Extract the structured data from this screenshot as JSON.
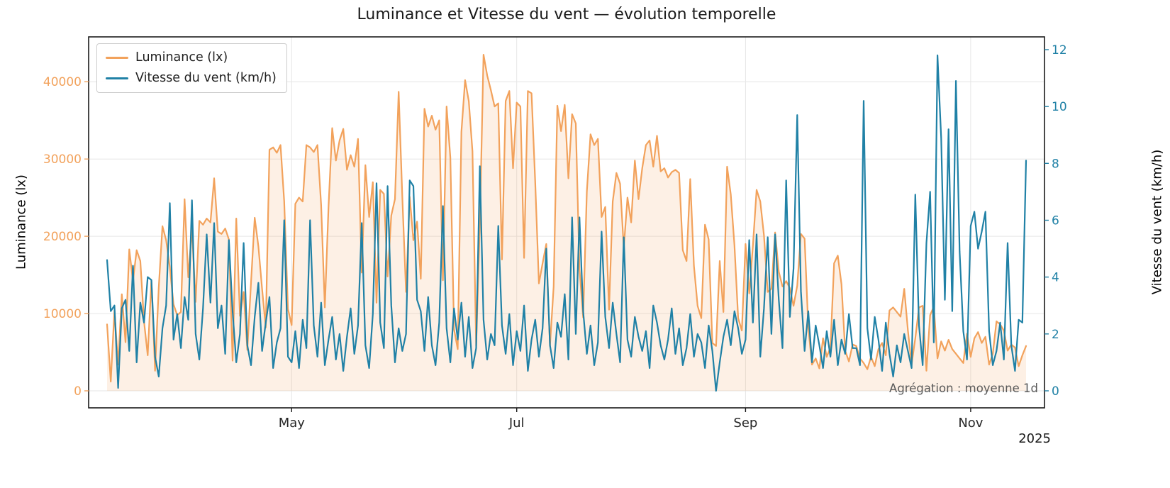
{
  "title": "Luminance et Vitesse du vent — évolution temporelle",
  "annotation": "Agrégation : moyenne 1d",
  "year_label": "2025",
  "axes": {
    "left_label": "Luminance (lx)",
    "right_label": "Vitesse du vent (km/h)",
    "left_color": "#f2a25c",
    "right_color": "#2081a6"
  },
  "legend": {
    "items": [
      {
        "label": "Luminance (lx)",
        "color": "#f2a25c"
      },
      {
        "label": "Vitesse du vent (km/h)",
        "color": "#2081a6"
      }
    ]
  },
  "chart_data": {
    "type": "line",
    "title": "Luminance et Vitesse du vent — évolution temporelle",
    "xlabel": "",
    "ylabel_left": "Luminance (lx)",
    "ylabel_right": "Vitesse du vent (km/h)",
    "aggregation": "moyenne 1d",
    "x_start": "2025-03-12",
    "x_end": "2025-11-16",
    "x_freq": "1d",
    "grid_color": "#e6e6e6",
    "xlim": [
      -5,
      254
    ],
    "x_ticks": [
      {
        "index": 50,
        "label": "May"
      },
      {
        "index": 111,
        "label": "Jul"
      },
      {
        "index": 173,
        "label": "Sep"
      },
      {
        "index": 234,
        "label": "Nov"
      }
    ],
    "x_year": "2025",
    "left_axis": {
      "label": "Luminance (lx)",
      "color": "#f2a25c",
      "ticks": [
        0,
        10000,
        20000,
        30000,
        40000
      ],
      "ylim": [
        -2200,
        45800
      ]
    },
    "right_axis": {
      "label": "Vitesse du vent (km/h)",
      "color": "#2081a6",
      "ticks": [
        0,
        2,
        4,
        6,
        8,
        10,
        12
      ],
      "ylim": [
        -0.6,
        12.45
      ]
    },
    "series": [
      {
        "name": "Luminance (lx)",
        "axis": "left",
        "color": "#f2a25c",
        "fill": true,
        "fill_color": "rgba(242,162,92,0.16)",
        "values": [
          8600,
          1200,
          10400,
          3400,
          12500,
          6300,
          18300,
          14200,
          18200,
          16800,
          9000,
          4600,
          14300,
          2600,
          13400,
          21300,
          19500,
          16000,
          11200,
          9800,
          10200,
          24800,
          14700,
          21000,
          11500,
          22000,
          21500,
          22300,
          21800,
          27500,
          20600,
          20300,
          21000,
          19600,
          3900,
          22300,
          9700,
          12800,
          5300,
          14000,
          22400,
          18700,
          13200,
          8200,
          31200,
          31500,
          30800,
          31800,
          24500,
          10600,
          8500,
          24200,
          25000,
          24500,
          31800,
          31500,
          30900,
          31800,
          24000,
          10800,
          23800,
          34000,
          29800,
          32400,
          33900,
          28600,
          30500,
          29000,
          32600,
          15300,
          29200,
          22500,
          27000,
          11400,
          26000,
          25500,
          14800,
          22700,
          24800,
          38700,
          25000,
          12800,
          25100,
          19500,
          21900,
          14500,
          36500,
          34200,
          35600,
          33800,
          35000,
          14300,
          36800,
          30200,
          8000,
          5400,
          33500,
          40200,
          37500,
          31000,
          5800,
          21500,
          43500,
          40800,
          38900,
          36800,
          37200,
          17000,
          37500,
          38800,
          28800,
          37300,
          36800,
          17200,
          38800,
          38500,
          27000,
          13900,
          16500,
          19000,
          5800,
          13500,
          36900,
          33600,
          37000,
          27500,
          35800,
          34600,
          15800,
          9500,
          25800,
          33200,
          31800,
          32600,
          22500,
          23800,
          10500,
          24500,
          28200,
          26800,
          18500,
          25000,
          21800,
          29800,
          24800,
          28800,
          31800,
          32400,
          29000,
          33000,
          28400,
          28800,
          27600,
          28300,
          28600,
          28200,
          18200,
          16800,
          27400,
          16200,
          11000,
          9400,
          21500,
          19600,
          6200,
          5800,
          16800,
          10200,
          29000,
          25400,
          18800,
          9400,
          7800,
          19000,
          12600,
          18800,
          26000,
          24500,
          20100,
          12800,
          13200,
          20500,
          15400,
          13500,
          14200,
          13300,
          11000,
          13600,
          20300,
          19700,
          8200,
          3400,
          4200,
          2900,
          6800,
          4400,
          5600,
          16500,
          17500,
          13800,
          5200,
          3800,
          6000,
          5800,
          4200,
          3600,
          2800,
          4400,
          3200,
          5400,
          6200,
          4600,
          10400,
          10800,
          10200,
          9600,
          13200,
          7800,
          3400,
          6800,
          10800,
          11000,
          2600,
          9800,
          10900,
          4200,
          6400,
          5200,
          6600,
          5400,
          4800,
          4200,
          3600,
          7400,
          4400,
          6800,
          7600,
          6200,
          7000,
          3400,
          4800,
          9000,
          8600,
          7800,
          5200,
          6000,
          5600,
          3200,
          4600,
          5800
        ]
      },
      {
        "name": "Vitesse du vent (km/h)",
        "axis": "right",
        "color": "#2081a6",
        "fill": false,
        "fill_color": "none",
        "values": [
          4.6,
          2.8,
          3.0,
          0.1,
          2.9,
          3.2,
          1.4,
          4.4,
          1.0,
          3.1,
          2.4,
          4.0,
          3.9,
          1.2,
          0.5,
          2.2,
          3.0,
          6.6,
          1.8,
          2.7,
          1.5,
          3.3,
          2.5,
          6.7,
          2.0,
          1.1,
          2.9,
          5.5,
          3.1,
          5.9,
          2.2,
          3.0,
          1.3,
          5.3,
          2.8,
          1.0,
          2.0,
          5.2,
          1.6,
          0.9,
          2.6,
          3.8,
          1.4,
          2.4,
          3.3,
          0.8,
          1.7,
          2.2,
          6.0,
          1.2,
          1.0,
          2.1,
          0.8,
          2.5,
          1.5,
          6.0,
          2.3,
          1.2,
          3.1,
          0.9,
          1.8,
          2.6,
          1.1,
          2.0,
          0.7,
          1.9,
          2.9,
          1.3,
          2.3,
          5.9,
          1.6,
          0.8,
          2.7,
          7.3,
          2.4,
          1.5,
          7.2,
          3.0,
          1.0,
          2.2,
          1.4,
          2.0,
          7.4,
          7.2,
          3.2,
          2.8,
          1.4,
          3.3,
          1.6,
          0.9,
          2.4,
          6.5,
          2.2,
          1.0,
          2.9,
          1.8,
          3.1,
          1.2,
          2.6,
          0.8,
          1.5,
          7.9,
          2.5,
          1.1,
          2.0,
          1.6,
          5.8,
          2.3,
          1.3,
          2.7,
          0.9,
          2.1,
          1.4,
          3.0,
          0.7,
          1.8,
          2.5,
          1.2,
          2.2,
          5.0,
          1.6,
          0.8,
          2.4,
          1.9,
          3.4,
          1.1,
          6.1,
          2.0,
          6.1,
          2.8,
          1.3,
          2.3,
          0.9,
          1.7,
          5.6,
          2.6,
          1.5,
          3.1,
          2.0,
          1.0,
          5.4,
          1.8,
          1.2,
          2.6,
          1.9,
          1.4,
          2.1,
          0.8,
          3.0,
          2.4,
          1.6,
          1.1,
          1.8,
          2.9,
          1.3,
          2.2,
          0.9,
          1.5,
          2.7,
          1.2,
          2.0,
          1.7,
          0.8,
          2.3,
          1.4,
          0.0,
          1.0,
          1.9,
          2.5,
          1.6,
          2.8,
          2.2,
          1.3,
          1.8,
          5.3,
          2.4,
          5.5,
          1.2,
          2.9,
          5.4,
          2.0,
          5.5,
          3.2,
          1.5,
          7.4,
          2.6,
          4.3,
          9.7,
          3.5,
          1.4,
          2.8,
          1.0,
          2.3,
          1.6,
          0.8,
          2.1,
          1.2,
          2.5,
          0.9,
          1.8,
          1.3,
          2.7,
          1.5,
          1.5,
          0.9,
          10.2,
          2.2,
          1.1,
          2.6,
          1.8,
          0.7,
          2.4,
          1.3,
          0.5,
          1.6,
          1.0,
          2.0,
          1.4,
          0.8,
          6.9,
          2.3,
          0.9,
          5.2,
          7.0,
          1.7,
          11.8,
          8.9,
          3.2,
          9.2,
          2.8,
          10.9,
          4.9,
          2.1,
          1.1,
          5.8,
          6.3,
          5.0,
          5.6,
          6.3,
          2.1,
          0.9,
          1.4,
          2.4,
          1.1,
          5.2,
          1.6,
          0.7,
          2.5,
          2.4,
          8.1
        ]
      }
    ]
  }
}
